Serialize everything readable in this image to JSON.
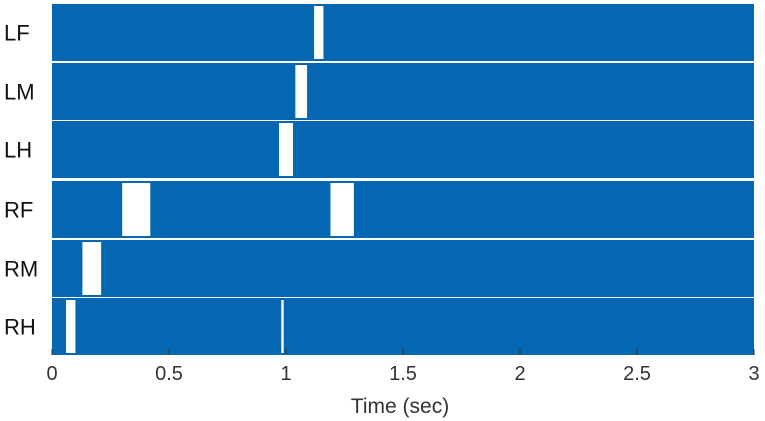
{
  "chart_data": {
    "type": "gait-diagram",
    "xlabel": "Time (sec)",
    "xlim": [
      0,
      3
    ],
    "x_ticks": [
      0,
      0.5,
      1,
      1.5,
      2,
      2.5,
      3
    ],
    "x_tick_labels": [
      "0",
      "0.5",
      "1",
      "1.5",
      "2",
      "2.5",
      "3"
    ],
    "bar_color": "#0567b1",
    "gap_color": "#ffffff",
    "rows": [
      {
        "label": "LF",
        "gaps": [
          [
            1.12,
            1.16
          ]
        ]
      },
      {
        "label": "LM",
        "gaps": [
          [
            1.04,
            1.09
          ]
        ]
      },
      {
        "label": "LH",
        "gaps": [
          [
            0.97,
            1.03
          ]
        ]
      },
      {
        "label": "RF",
        "gaps": [
          [
            0.3,
            0.42
          ],
          [
            1.19,
            1.29
          ]
        ]
      },
      {
        "label": "RM",
        "gaps": [
          [
            0.13,
            0.21
          ]
        ]
      },
      {
        "label": "RH",
        "gaps": [
          [
            0.06,
            0.1
          ],
          [
            0.98,
            0.99
          ]
        ]
      }
    ]
  }
}
